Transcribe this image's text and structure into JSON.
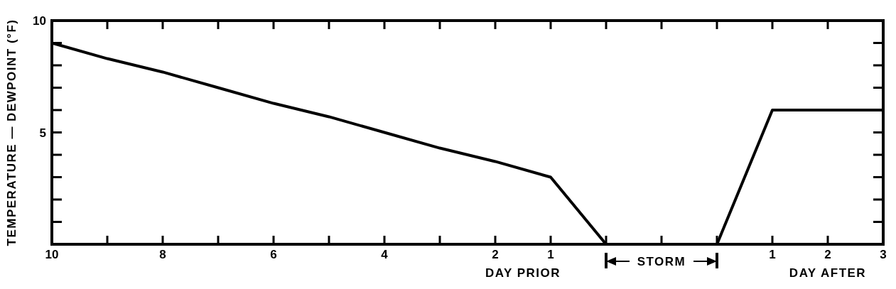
{
  "chart_data": {
    "type": "line",
    "ylabel": "TEMPERATURE — DEWPOINT (°F)",
    "categories": [
      "10",
      null,
      "8",
      null,
      "6",
      null,
      "4",
      null,
      "2",
      "1",
      null,
      null,
      null,
      "1",
      "2",
      "3"
    ],
    "series": [
      {
        "color": "#000000",
        "values": [
          9,
          8.3,
          7.7,
          7,
          6.3,
          5.7,
          5,
          4.3,
          3.7,
          3,
          0,
          0,
          0,
          6,
          6,
          6
        ]
      }
    ],
    "ylim": [
      0,
      10
    ],
    "yticks": [
      {
        "value": 0,
        "label": null
      },
      {
        "value": 1,
        "label": null
      },
      {
        "value": 2,
        "label": null
      },
      {
        "value": 3,
        "label": null
      },
      {
        "value": 4,
        "label": null
      },
      5,
      {
        "value": 6,
        "label": null
      },
      {
        "value": 7,
        "label": null
      },
      {
        "value": 8,
        "label": null
      },
      {
        "value": 9,
        "label": null
      },
      10
    ],
    "annotations": [
      "DAY PRIOR",
      "STORM",
      "DAY AFTER"
    ],
    "grid": false,
    "legend": false,
    "marker": "none",
    "line_style": "solid"
  }
}
